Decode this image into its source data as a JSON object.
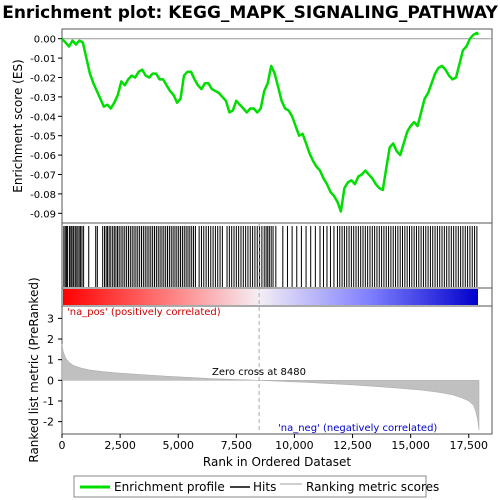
{
  "chart_data": [
    {
      "panel": "enrichment",
      "type": "line",
      "title": "Enrichment plot: KEGG_MAPK_SIGNALING_PATHWAY",
      "ylabel": "Enrichment score (ES)",
      "xlim": [
        0,
        18500
      ],
      "ylim": [
        -0.095,
        0.005
      ],
      "yticks": [
        0.0,
        -0.01,
        -0.02,
        -0.03,
        -0.04,
        -0.05,
        -0.06,
        -0.07,
        -0.08,
        -0.09
      ],
      "ytick_labels": [
        "0.00",
        "-0.01",
        "-0.02",
        "-0.03",
        "-0.04",
        "-0.05",
        "-0.06",
        "-0.07",
        "-0.08",
        "-0.09"
      ],
      "series": [
        {
          "name": "Enrichment profile",
          "color": "#00dd00",
          "x": [
            0,
            150,
            300,
            450,
            600,
            750,
            900,
            1050,
            1200,
            1350,
            1500,
            1650,
            1800,
            1950,
            2100,
            2250,
            2400,
            2550,
            2700,
            2850,
            3000,
            3150,
            3300,
            3450,
            3600,
            3750,
            3900,
            4050,
            4200,
            4350,
            4500,
            4650,
            4800,
            4950,
            5100,
            5250,
            5400,
            5550,
            5700,
            5850,
            6000,
            6150,
            6300,
            6450,
            6600,
            6750,
            6900,
            7050,
            7200,
            7350,
            7500,
            7650,
            7800,
            7950,
            8100,
            8250,
            8400,
            8550,
            8700,
            8850,
            9000,
            9150,
            9300,
            9450,
            9600,
            9750,
            9900,
            10050,
            10200,
            10350,
            10500,
            10650,
            10800,
            10950,
            11100,
            11250,
            11400,
            11550,
            11700,
            11850,
            12000,
            12150,
            12300,
            12450,
            12600,
            12750,
            12900,
            13050,
            13200,
            13350,
            13500,
            13650,
            13800,
            13950,
            14100,
            14250,
            14400,
            14550,
            14700,
            14850,
            15000,
            15150,
            15300,
            15450,
            15600,
            15750,
            15900,
            16050,
            16200,
            16350,
            16500,
            16650,
            16800,
            16950,
            17100,
            17250,
            17400,
            17550,
            17700,
            17850,
            17900
          ],
          "y": [
            0.0,
            -0.002,
            -0.004,
            -0.001,
            -0.003,
            -0.001,
            -0.002,
            -0.01,
            -0.018,
            -0.023,
            -0.027,
            -0.031,
            -0.035,
            -0.034,
            -0.036,
            -0.033,
            -0.029,
            -0.022,
            -0.024,
            -0.021,
            -0.019,
            -0.02,
            -0.017,
            -0.016,
            -0.019,
            -0.02,
            -0.018,
            -0.018,
            -0.021,
            -0.021,
            -0.024,
            -0.027,
            -0.029,
            -0.033,
            -0.031,
            -0.019,
            -0.017,
            -0.017,
            -0.021,
            -0.024,
            -0.026,
            -0.023,
            -0.023,
            -0.026,
            -0.027,
            -0.028,
            -0.03,
            -0.032,
            -0.038,
            -0.037,
            -0.032,
            -0.034,
            -0.036,
            -0.038,
            -0.036,
            -0.036,
            -0.038,
            -0.036,
            -0.027,
            -0.023,
            -0.014,
            -0.018,
            -0.025,
            -0.032,
            -0.036,
            -0.037,
            -0.04,
            -0.045,
            -0.05,
            -0.049,
            -0.054,
            -0.059,
            -0.063,
            -0.066,
            -0.068,
            -0.072,
            -0.075,
            -0.079,
            -0.081,
            -0.084,
            -0.089,
            -0.077,
            -0.074,
            -0.073,
            -0.075,
            -0.071,
            -0.07,
            -0.068,
            -0.07,
            -0.072,
            -0.075,
            -0.077,
            -0.078,
            -0.067,
            -0.056,
            -0.054,
            -0.058,
            -0.06,
            -0.054,
            -0.048,
            -0.045,
            -0.043,
            -0.045,
            -0.038,
            -0.031,
            -0.028,
            -0.023,
            -0.018,
            -0.015,
            -0.014,
            -0.016,
            -0.019,
            -0.021,
            -0.02,
            -0.013,
            -0.006,
            -0.004,
            0.0,
            0.002,
            0.003,
            0.002
          ]
        }
      ]
    },
    {
      "panel": "hits",
      "type": "scatter",
      "series": [
        {
          "name": "Hits",
          "color": "#000000",
          "x": [
            80,
            140,
            190,
            240,
            320,
            380,
            430,
            490,
            560,
            610,
            680,
            740,
            800,
            860,
            930,
            1150,
            1450,
            1520,
            1750,
            1830,
            1900,
            1960,
            2030,
            2100,
            2180,
            2250,
            2320,
            2390,
            2460,
            2540,
            2620,
            2700,
            2780,
            2860,
            2940,
            3020,
            3100,
            3180,
            3260,
            3340,
            3420,
            3500,
            3580,
            3660,
            3740,
            3820,
            3900,
            3980,
            4060,
            4140,
            4220,
            4300,
            4380,
            4460,
            4540,
            4620,
            4700,
            4780,
            4860,
            4940,
            5020,
            5100,
            5180,
            5260,
            5340,
            5420,
            5500,
            5580,
            5660,
            5740,
            5900,
            6000,
            6100,
            6200,
            6300,
            6400,
            6500,
            6600,
            6700,
            6800,
            6900,
            7100,
            7200,
            7300,
            7400,
            7500,
            7600,
            7700,
            7800,
            7900,
            8000,
            8100,
            8200,
            8300,
            8400,
            8500,
            8600,
            8700,
            8780,
            8850,
            8920,
            9000,
            9080,
            9200,
            9500,
            9700,
            9900,
            10100,
            10300,
            10500,
            10700,
            10900,
            11100,
            11250,
            11400,
            11550,
            11700,
            11850,
            11950,
            12050,
            12150,
            12250,
            12350,
            12450,
            12550,
            12650,
            12750,
            12850,
            12950,
            13050,
            13150,
            13250,
            13350,
            13450,
            13550,
            13650,
            13750,
            13850,
            13950,
            14050,
            14150,
            14250,
            14350,
            14450,
            14550,
            14650,
            14750,
            14850,
            14950,
            15050,
            15150,
            15250,
            15350,
            15450,
            15550,
            15650,
            15750,
            15850,
            15950,
            16050,
            16150,
            16250,
            16350,
            16450,
            16550,
            16650,
            16750,
            16850,
            16950,
            17050,
            17150,
            17250,
            17350,
            17450,
            17550,
            17650,
            17750,
            17850
          ]
        }
      ]
    },
    {
      "panel": "ranking-metric",
      "type": "area",
      "ylabel": "Ranked list metric (PreRanked)",
      "xlabel": "Rank in Ordered Dataset",
      "xlim": [
        0,
        18500
      ],
      "ylim": [
        -2.6,
        3.6
      ],
      "xticks": [
        0,
        2500,
        5000,
        7500,
        10000,
        12500,
        15000,
        17500
      ],
      "xtick_labels": [
        "0",
        "2,500",
        "5,000",
        "7,500",
        "10,000",
        "12,500",
        "15,000",
        "17,500"
      ],
      "yticks": [
        3,
        2,
        1,
        0,
        -1,
        -2
      ],
      "ytick_labels": [
        "3",
        "2",
        "1",
        "0",
        "-1",
        "-2"
      ],
      "series": [
        {
          "name": "Ranking metric scores",
          "color": "#c0c0c0",
          "x": [
            0,
            50,
            150,
            300,
            500,
            800,
            1200,
            1800,
            2500,
            3500,
            4500,
            5500,
            6500,
            7500,
            8480,
            9500,
            10500,
            11500,
            12500,
            13500,
            14500,
            15500,
            16200,
            16800,
            17200,
            17500,
            17700,
            17800,
            17880,
            17940
          ],
          "y": [
            1.75,
            1.4,
            1.1,
            0.88,
            0.72,
            0.6,
            0.5,
            0.42,
            0.35,
            0.27,
            0.2,
            0.14,
            0.08,
            0.04,
            0.0,
            -0.05,
            -0.1,
            -0.16,
            -0.22,
            -0.3,
            -0.38,
            -0.48,
            -0.58,
            -0.7,
            -0.85,
            -1.0,
            -1.2,
            -1.5,
            -1.9,
            -2.4
          ]
        }
      ],
      "annotations": {
        "zero_cross": "Zero cross at 8480",
        "zero_cross_x": 8480,
        "pos_label": "'na_pos' (positively correlated)",
        "neg_label": "'na_neg' (negatively correlated)"
      }
    }
  ],
  "legend": {
    "items": [
      {
        "label": "Enrichment profile",
        "color": "#00dd00"
      },
      {
        "label": "Hits",
        "color": "#000000"
      },
      {
        "label": "Ranking metric scores",
        "color": "#c0c0c0"
      }
    ]
  },
  "colors": {
    "pos_label": "#cc0000",
    "neg_label": "#0000cc",
    "gradient_red": "#ff0000",
    "gradient_blue": "#0000cc"
  }
}
